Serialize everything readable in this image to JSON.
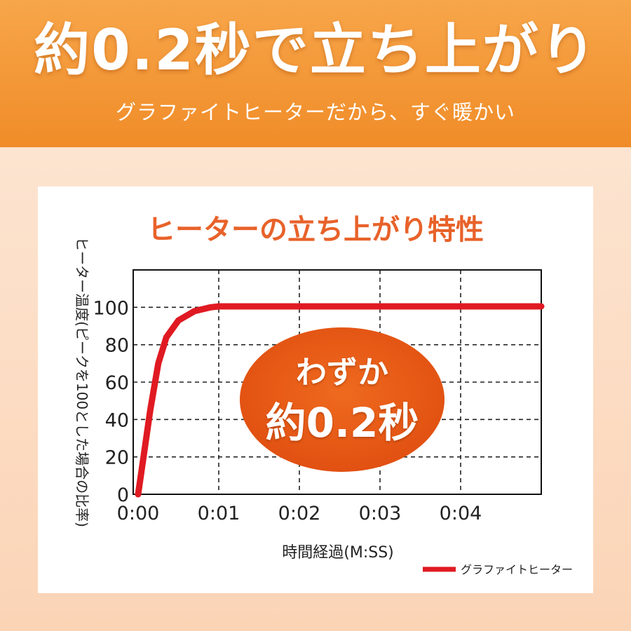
{
  "banner": {
    "headline": "約0.2秒で立ち上がり",
    "subline": "グラファイトヒーターだから、すぐ暖かい"
  },
  "colors": {
    "banner": "#f39433",
    "title": "#e8622a",
    "series": "#e01a22",
    "callout": "#e65312"
  },
  "callout": {
    "line1": "わずか",
    "line2": "約0.2秒"
  },
  "chart_data": {
    "type": "line",
    "title": "ヒーターの立ち上がり特性",
    "ylabel": "ヒーター温度(ピークを100とした場合の比率)",
    "xlabel": "時間経過(M:SS)",
    "x_ticks": [
      "0:00",
      "0:01",
      "0:02",
      "0:03",
      "0:04"
    ],
    "y_ticks": [
      "0",
      "20",
      "40",
      "60",
      "80",
      "100"
    ],
    "xlim": [
      0,
      5
    ],
    "ylim": [
      0,
      120
    ],
    "grid": true,
    "legend_position": "bottom-right",
    "series": [
      {
        "name": "グラファイトヒーター",
        "color": "#e01a22",
        "points": [
          [
            0,
            0
          ],
          [
            0.05,
            15
          ],
          [
            0.15,
            45
          ],
          [
            0.25,
            70
          ],
          [
            0.35,
            84
          ],
          [
            0.5,
            93
          ],
          [
            0.7,
            98
          ],
          [
            0.9,
            100
          ],
          [
            1.0,
            100.5
          ],
          [
            2.0,
            100.5
          ],
          [
            3.0,
            100.5
          ],
          [
            4.0,
            100.5
          ],
          [
            5.0,
            100.5
          ]
        ]
      }
    ]
  }
}
